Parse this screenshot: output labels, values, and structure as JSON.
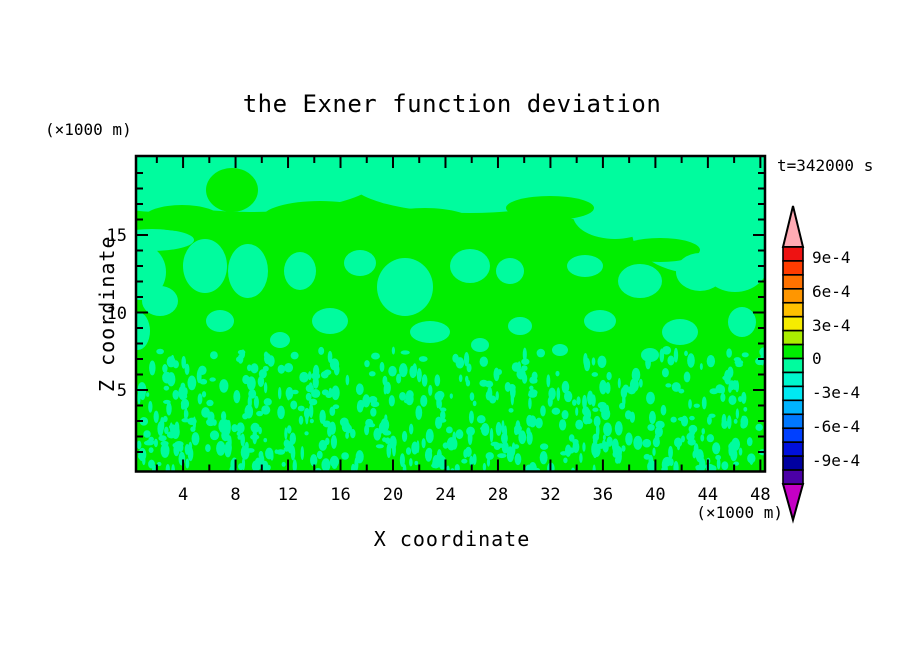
{
  "title": "the Exner function deviation",
  "time_label": "t=342000 s",
  "x_axis": {
    "label": "X coordinate",
    "unit": "(×1000 m)",
    "ticks": [
      4,
      8,
      12,
      16,
      20,
      24,
      28,
      32,
      36,
      40,
      44,
      48
    ]
  },
  "y_axis": {
    "label": "Z coordinate",
    "unit": "(×1000 m)",
    "ticks": [
      5,
      10,
      15
    ]
  },
  "colorbar": {
    "labels": [
      "9e-4",
      "6e-4",
      "3e-4",
      "0",
      "-3e-4",
      "-6e-4",
      "-9e-4"
    ],
    "segment_colors": [
      "#ee1212",
      "#ff3c00",
      "#ff7200",
      "#ff9600",
      "#ffc000",
      "#f6ec00",
      "#aaee00",
      "#00ee00",
      "#00fc9e",
      "#00f7cd",
      "#00e9f2",
      "#00b4ff",
      "#0078ff",
      "#0040ff",
      "#0010dc",
      "#0000a0",
      "#4b00a6"
    ],
    "arrow_top_color": "#ffaab4",
    "arrow_bottom_color": "#c400c4"
  },
  "plot_colors": {
    "background_green": "#00ee00",
    "patch_spring_green": "#00fc9e",
    "frame": "#000000"
  },
  "chart_data": {
    "type": "heatmap",
    "subtype": "filled-contour",
    "title": "the Exner function deviation",
    "xlabel": "X coordinate",
    "x_unit": "(×1000 m)",
    "ylabel": "Z coordinate",
    "y_unit": "(×1000 m)",
    "x_range": [
      0,
      48.5
    ],
    "z_range": [
      0,
      20
    ],
    "x_ticks_major": [
      4,
      8,
      12,
      16,
      20,
      24,
      28,
      32,
      36,
      40,
      44,
      48
    ],
    "x_ticks_minor_step": 2,
    "z_ticks_major": [
      5,
      10,
      15
    ],
    "z_ticks_minor_step": 1,
    "time_annotation": "t=342000 s",
    "colorbar": {
      "labeled_levels": [
        0.0009,
        0.0006,
        0.0003,
        0,
        -0.0003,
        -0.0006,
        -0.0009
      ],
      "n_segments": 17,
      "orientation": "vertical",
      "over_arrow": "pink",
      "under_arrow": "magenta"
    },
    "field_summary": "Entire displayed field lies in the two bins adjacent to zero: weakly positive deviation (bright green) forms the background through most of the domain; weakly negative deviation (light spring green) fills a band along the top (z ≈ 15–20 km), large smooth patches at mid-levels, and a dense fine speckle below z ≈ 7 km."
  }
}
